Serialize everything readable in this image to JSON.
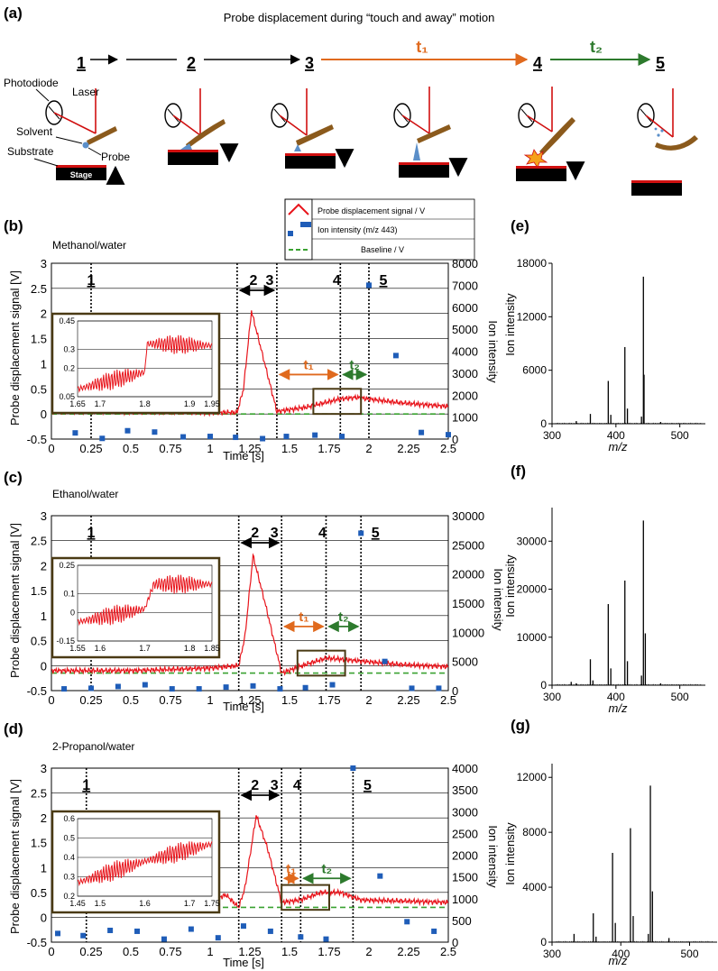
{
  "panel_a": {
    "label": "(a)",
    "title": "Probe displacement during “touch and away” motion",
    "steps": [
      "1",
      "2",
      "3",
      "4",
      "5"
    ],
    "t1": "t₁",
    "t2": "t₂",
    "parts": {
      "photodiode": "Photodiode",
      "laser": "Laser",
      "solvent": "Solvent",
      "substrate": "Substrate",
      "probe": "Probe",
      "stage": "Stage"
    }
  },
  "legend": {
    "probe": "Probe displacement signal / V",
    "ion": "Ion intensity (m/z 443)",
    "baseline": "Baseline / V"
  },
  "colors": {
    "signal": "#e8141b",
    "ion": "#1f5db8",
    "baseline": "#3aa231",
    "t1": "#e06a1e",
    "t2": "#2d7a2d",
    "box": "#4a3a14"
  },
  "chart_data": [
    {
      "id": "b",
      "label": "(b)",
      "type": "line",
      "subtitle": "Methanol/water",
      "xlabel": "Time [s]",
      "ylabel": "Probe displacement signal [V]",
      "y2label": "Ion intensity",
      "xlim": [
        0,
        2.5
      ],
      "ylim": [
        -0.5,
        3
      ],
      "y2lim": [
        0,
        8000
      ],
      "xticks": [
        "0",
        "0.25",
        "0.5",
        "0.75",
        "1",
        "1.25",
        "1.5",
        "1.75",
        "2",
        "2.25",
        "2.5"
      ],
      "yticks": [
        "-0.5",
        "0",
        "0.5",
        "1",
        "1.5",
        "2",
        "2.5",
        "3"
      ],
      "y2ticks": [
        "0",
        "1000",
        "2000",
        "3000",
        "4000",
        "5000",
        "6000",
        "7000",
        "8000"
      ],
      "markers": [
        0.25,
        1.17,
        1.42,
        1.82,
        2.0
      ],
      "step_labels": [
        "1",
        "2",
        "3",
        "4",
        "5"
      ],
      "phase_t1": "t₁",
      "phase_t2": "t₂",
      "baseline": 0.0,
      "signal_trace": [
        [
          0,
          0.05
        ],
        [
          0.25,
          0.05
        ],
        [
          1.0,
          0.03
        ],
        [
          1.17,
          0.03
        ],
        [
          1.21,
          0.5
        ],
        [
          1.26,
          2.05
        ],
        [
          1.32,
          1.3
        ],
        [
          1.42,
          0.05
        ],
        [
          1.6,
          0.13
        ],
        [
          1.82,
          0.3
        ],
        [
          1.92,
          0.33
        ],
        [
          2.2,
          0.22
        ],
        [
          2.5,
          0.15
        ]
      ],
      "ion_points": [
        [
          0.15,
          280
        ],
        [
          0.32,
          30
        ],
        [
          0.48,
          380
        ],
        [
          0.65,
          320
        ],
        [
          0.83,
          100
        ],
        [
          1.0,
          120
        ],
        [
          1.16,
          80
        ],
        [
          1.33,
          20
        ],
        [
          1.48,
          120
        ],
        [
          1.66,
          180
        ],
        [
          1.83,
          120
        ],
        [
          2.0,
          7000
        ],
        [
          2.17,
          3800
        ],
        [
          2.33,
          300
        ],
        [
          2.5,
          200
        ]
      ],
      "inset": {
        "xlim": [
          1.65,
          1.95
        ],
        "ylim": [
          0.05,
          0.45
        ],
        "xticks": [
          "1.65",
          "1.7",
          "1.8",
          "1.9",
          "1.95"
        ],
        "yticks": [
          "0.05",
          "0.2",
          "0.3",
          "0.45"
        ],
        "trace": [
          [
            1.65,
            0.09
          ],
          [
            1.8,
            0.18
          ],
          [
            1.805,
            0.33
          ],
          [
            1.95,
            0.32
          ]
        ]
      }
    },
    {
      "id": "c",
      "label": "(c)",
      "type": "line",
      "subtitle": "Ethanol/water",
      "xlabel": "Time [s]",
      "ylabel": "Probe displacement signal [V]",
      "y2label": "Ion intensity",
      "xlim": [
        0,
        2.5
      ],
      "ylim": [
        -0.5,
        3
      ],
      "y2lim": [
        0,
        30000
      ],
      "xticks": [
        "0",
        "0.25",
        "0.5",
        "0.75",
        "1",
        "1.25",
        "1.5",
        "1.75",
        "2",
        "2.25",
        "2.5"
      ],
      "yticks": [
        "-0.5",
        "0",
        "0.5",
        "1",
        "1.5",
        "2",
        "2.5",
        "3"
      ],
      "y2ticks": [
        "0",
        "5000",
        "10000",
        "15000",
        "20000",
        "25000",
        "30000"
      ],
      "markers": [
        0.25,
        1.18,
        1.45,
        1.73,
        1.95
      ],
      "step_labels": [
        "1",
        "2",
        "3",
        "4",
        "5"
      ],
      "phase_t1": "t₁",
      "phase_t2": "t₂",
      "baseline": -0.15,
      "signal_trace": [
        [
          0,
          -0.1
        ],
        [
          0.5,
          -0.1
        ],
        [
          1.0,
          -0.05
        ],
        [
          1.18,
          0.0
        ],
        [
          1.22,
          0.6
        ],
        [
          1.27,
          2.2
        ],
        [
          1.35,
          1.2
        ],
        [
          1.45,
          -0.15
        ],
        [
          1.6,
          0.02
        ],
        [
          1.73,
          0.15
        ],
        [
          1.85,
          0.12
        ],
        [
          2.2,
          0.02
        ],
        [
          2.5,
          -0.02
        ]
      ],
      "ion_points": [
        [
          0.08,
          300
        ],
        [
          0.25,
          400
        ],
        [
          0.42,
          700
        ],
        [
          0.59,
          1000
        ],
        [
          0.76,
          300
        ],
        [
          0.93,
          300
        ],
        [
          1.1,
          600
        ],
        [
          1.27,
          800
        ],
        [
          1.44,
          300
        ],
        [
          1.6,
          500
        ],
        [
          1.77,
          1000
        ],
        [
          1.95,
          27000
        ],
        [
          2.1,
          5000
        ],
        [
          2.27,
          400
        ],
        [
          2.44,
          400
        ]
      ],
      "inset": {
        "xlim": [
          1.55,
          1.85
        ],
        "ylim": [
          -0.15,
          0.25
        ],
        "xticks": [
          "1.55",
          "1.6",
          "1.7",
          "1.8",
          "1.85"
        ],
        "yticks": [
          "-0.15",
          "0",
          "0.1",
          "0.25"
        ],
        "trace": [
          [
            1.55,
            -0.05
          ],
          [
            1.7,
            0.02
          ],
          [
            1.72,
            0.15
          ],
          [
            1.85,
            0.15
          ]
        ]
      }
    },
    {
      "id": "d",
      "label": "(d)",
      "type": "line",
      "subtitle": "2-Propanol/water",
      "xlabel": "Time [s]",
      "ylabel": "Probe displacement signal [V]",
      "y2label": "Ion intensity",
      "xlim": [
        0,
        2.5
      ],
      "ylim": [
        -0.5,
        3
      ],
      "y2lim": [
        0,
        4000
      ],
      "xticks": [
        "0",
        "0.25",
        "0.5",
        "0.75",
        "1",
        "1.25",
        "1.5",
        "1.75",
        "2",
        "2.25",
        "2.5"
      ],
      "yticks": [
        "-0.5",
        "0",
        "0.5",
        "1",
        "1.5",
        "2",
        "2.5",
        "3"
      ],
      "y2ticks": [
        "0",
        "500",
        "1000",
        "1500",
        "2000",
        "2500",
        "3000",
        "3500",
        "4000"
      ],
      "markers": [
        0.22,
        1.18,
        1.45,
        1.57,
        1.9
      ],
      "step_labels": [
        "1",
        "2",
        "3",
        "4",
        "5"
      ],
      "phase_t1": "t₁",
      "phase_t2": "t₂",
      "baseline": 0.2,
      "signal_trace": [
        [
          0,
          0.18
        ],
        [
          0.5,
          0.18
        ],
        [
          0.9,
          0.22
        ],
        [
          1.1,
          0.45
        ],
        [
          1.18,
          0.2
        ],
        [
          1.22,
          0.6
        ],
        [
          1.29,
          2.05
        ],
        [
          1.36,
          1.4
        ],
        [
          1.45,
          0.3
        ],
        [
          1.57,
          0.35
        ],
        [
          1.7,
          0.5
        ],
        [
          1.82,
          0.5
        ],
        [
          1.95,
          0.35
        ],
        [
          2.5,
          0.3
        ]
      ],
      "ion_points": [
        [
          0.04,
          200
        ],
        [
          0.2,
          150
        ],
        [
          0.37,
          270
        ],
        [
          0.54,
          250
        ],
        [
          0.71,
          70
        ],
        [
          0.88,
          300
        ],
        [
          1.05,
          100
        ],
        [
          1.21,
          370
        ],
        [
          1.38,
          250
        ],
        [
          1.57,
          120
        ],
        [
          1.73,
          70
        ],
        [
          1.9,
          4000
        ],
        [
          2.07,
          1520
        ],
        [
          2.24,
          470
        ],
        [
          2.41,
          250
        ]
      ],
      "inset": {
        "xlim": [
          1.45,
          1.75
        ],
        "ylim": [
          0.2,
          0.6
        ],
        "xticks": [
          "1.45",
          "1.5",
          "1.6",
          "1.7",
          "1.75"
        ],
        "yticks": [
          "0.2",
          "0.3",
          "0.4",
          "0.5",
          "0.6"
        ],
        "trace": [
          [
            1.45,
            0.27
          ],
          [
            1.6,
            0.38
          ],
          [
            1.75,
            0.47
          ]
        ]
      }
    },
    {
      "id": "e",
      "label": "(e)",
      "type": "bar",
      "subtitle": "",
      "xlabel": "m/z",
      "ylabel": "Ion intensity",
      "xlim": [
        300,
        540
      ],
      "ylim": [
        0,
        18000
      ],
      "xticks": [
        "300",
        "400",
        "500"
      ],
      "yticks": [
        "0",
        "6000",
        "12000",
        "18000"
      ],
      "peaks": [
        [
          338,
          300
        ],
        [
          360,
          1100
        ],
        [
          388,
          4800
        ],
        [
          392,
          1000
        ],
        [
          414,
          8600
        ],
        [
          418,
          1700
        ],
        [
          440,
          800
        ],
        [
          443,
          16500
        ],
        [
          444,
          5500
        ],
        [
          470,
          200
        ]
      ]
    },
    {
      "id": "f",
      "label": "(f)",
      "type": "bar",
      "subtitle": "",
      "xlabel": "m/z",
      "ylabel": "Ion intensity",
      "xlim": [
        300,
        540
      ],
      "ylim": [
        0,
        37000
      ],
      "xticks": [
        "300",
        "400",
        "500"
      ],
      "yticks": [
        "0",
        "10000",
        "20000",
        "30000"
      ],
      "peaks": [
        [
          330,
          700
        ],
        [
          338,
          400
        ],
        [
          360,
          5400
        ],
        [
          364,
          1000
        ],
        [
          388,
          16900
        ],
        [
          392,
          3500
        ],
        [
          414,
          21800
        ],
        [
          418,
          5000
        ],
        [
          440,
          2000
        ],
        [
          443,
          34300
        ],
        [
          446,
          10800
        ],
        [
          470,
          400
        ]
      ]
    },
    {
      "id": "g",
      "label": "(g)",
      "type": "bar",
      "subtitle": "",
      "xlabel": "m/z",
      "ylabel": "Ion intensity",
      "xlim": [
        300,
        540
      ],
      "ylim": [
        0,
        13000
      ],
      "xticks": [
        "300",
        "400",
        "500"
      ],
      "yticks": [
        "0",
        "4000",
        "8000",
        "12000"
      ],
      "peaks": [
        [
          332,
          600
        ],
        [
          360,
          2100
        ],
        [
          364,
          400
        ],
        [
          388,
          6500
        ],
        [
          392,
          1400
        ],
        [
          414,
          8300
        ],
        [
          418,
          1900
        ],
        [
          440,
          600
        ],
        [
          443,
          11400
        ],
        [
          446,
          3700
        ],
        [
          470,
          300
        ]
      ]
    }
  ]
}
